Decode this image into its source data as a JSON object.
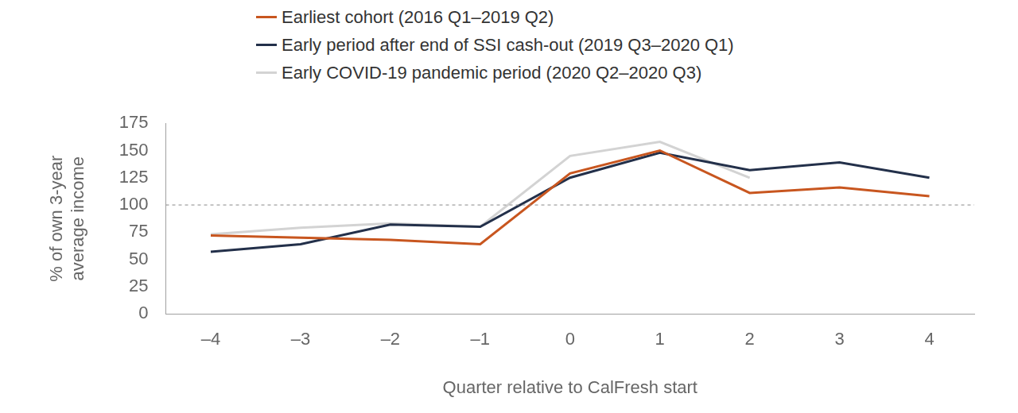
{
  "chart_data": {
    "type": "line",
    "categories": [
      "–4",
      "–3",
      "–2",
      "–1",
      "0",
      "1",
      "2",
      "3",
      "4"
    ],
    "series": [
      {
        "name": "Earliest cohort (2016 Q1–2019 Q2)",
        "color": "#c8561f",
        "values": [
          72,
          70,
          68,
          64,
          129,
          150,
          111,
          116,
          108
        ]
      },
      {
        "name": "Early period after end of SSI cash-out (2019 Q3–2020 Q1)",
        "color": "#23304a",
        "values": [
          57,
          64,
          82,
          80,
          125,
          148,
          132,
          139,
          125
        ]
      },
      {
        "name": "Early COVID-19 pandemic period (2020 Q2–2020 Q3)",
        "color": "#d3d3d3",
        "values": [
          73,
          79,
          83,
          80,
          145,
          158,
          125,
          null,
          null
        ]
      }
    ],
    "x_label": "Quarter relative to CalFresh start",
    "y_label": "% of own 3-year average income",
    "ylim": [
      0,
      175
    ],
    "yticks": [
      0,
      25,
      50,
      75,
      100,
      125,
      150,
      175
    ],
    "grid": false,
    "legend": "top",
    "reference_line": {
      "value": 100,
      "line_style": "dashed"
    }
  }
}
